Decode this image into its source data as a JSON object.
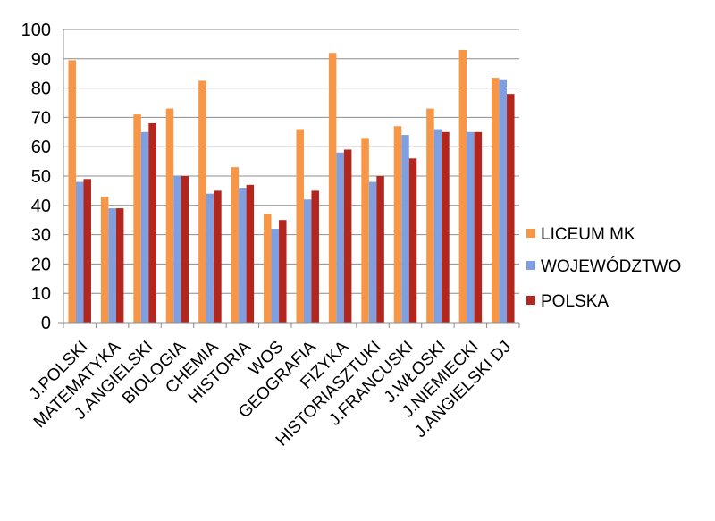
{
  "chart_data": {
    "type": "bar",
    "title": "",
    "xlabel": "",
    "ylabel": "",
    "ylim": [
      0,
      100
    ],
    "yticks": [
      0,
      10,
      20,
      30,
      40,
      50,
      60,
      70,
      80,
      90,
      100
    ],
    "grid": true,
    "legend_position": "right",
    "categories": [
      "J.POLSKI",
      "MATEMATYKA",
      "J.ANGIELSKI",
      "BIOLOGIA",
      "CHEMIA",
      "HISTORIA",
      "WOS",
      "GEOGRAFIA",
      "FIZYKA",
      "HISTORIASZTUKI",
      "J.FRANCUSKI",
      "J.WŁOSKI",
      "J.NIEMIECKI",
      "J.ANGIELSKI DJ"
    ],
    "series": [
      {
        "name": "LICEUM MK",
        "color": "#f79646",
        "values": [
          89.5,
          43,
          71,
          73,
          82.5,
          53,
          37,
          66,
          92,
          63,
          67,
          73,
          93,
          83.5
        ]
      },
      {
        "name": "WOJEWÓDZTWO",
        "color": "#7f9fe0",
        "values": [
          48,
          39,
          65,
          50,
          44,
          46,
          32,
          42,
          58,
          48,
          64,
          66,
          65,
          83
        ]
      },
      {
        "name": "POLSKA",
        "color": "#b3261e",
        "values": [
          49,
          39,
          68,
          50,
          45,
          47,
          35,
          45,
          59,
          50,
          56,
          65,
          65,
          78
        ]
      }
    ]
  }
}
